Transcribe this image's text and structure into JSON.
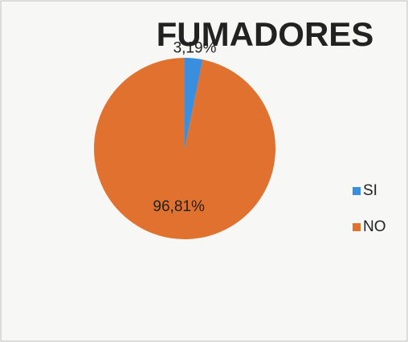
{
  "chart_data": {
    "type": "pie",
    "title": "FUMADORES",
    "categories": [
      "SI",
      "NO"
    ],
    "values": [
      3.19,
      96.81
    ],
    "value_labels": [
      "3,19%",
      "96,81%"
    ],
    "colors": [
      "#3a8ede",
      "#e0712e"
    ],
    "legend": "right"
  }
}
